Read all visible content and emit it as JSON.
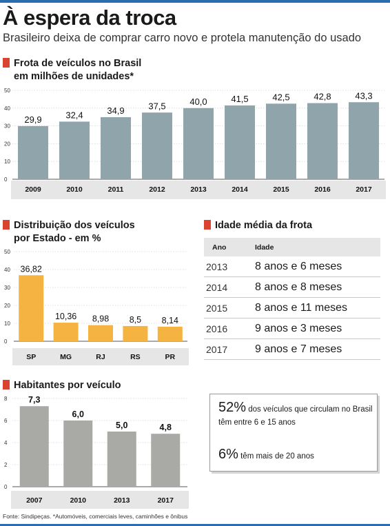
{
  "header": {
    "title": "À espera da troca",
    "subtitle": "Brasileiro deixa de comprar carro novo e protela manutenção do usado"
  },
  "fleet": {
    "title": "Frota de veículos no Brasil",
    "subtitle": "em milhões de unidades*"
  },
  "distribution": {
    "title": "Distribuição dos veículos",
    "subtitle": "por Estado - em %"
  },
  "inhabitants": {
    "title": "Habitantes por veículo"
  },
  "age": {
    "title": "Idade média da frota",
    "col_year": "Ano",
    "col_age": "Idade",
    "rows": [
      {
        "year": "2013",
        "age": "8 anos e 6 meses"
      },
      {
        "year": "2014",
        "age": "8 anos e 8 meses"
      },
      {
        "year": "2015",
        "age": "8 anos e 11 meses"
      },
      {
        "year": "2016",
        "age": "9 anos e 3 meses"
      },
      {
        "year": "2017",
        "age": "9 anos e 7 meses"
      }
    ]
  },
  "stats": {
    "pct1": "52%",
    "text1": "dos veículos que circulam no Brasil têm entre 6 e 15 anos",
    "pct2": "6%",
    "text2": "têm mais de 20 anos"
  },
  "footer": {
    "source": "Fonte: Sindipeças. *Automóveis, comerciais leves, caminhões e ônibus"
  },
  "colors": {
    "accent": "#d9432f",
    "fleet_bar": "#8fa4ab",
    "state_bar": "#f5b342",
    "inhabitants_bar": "#a9a9a6",
    "band": "#e6e6e6"
  },
  "chart_data": [
    {
      "type": "bar",
      "title": "Frota de veículos no Brasil",
      "ylabel": "em milhões de unidades*",
      "categories": [
        "2009",
        "2010",
        "2011",
        "2012",
        "2013",
        "2014",
        "2015",
        "2016",
        "2017"
      ],
      "values": [
        29.9,
        32.4,
        34.9,
        37.5,
        40.0,
        41.5,
        42.5,
        42.8,
        43.3
      ],
      "value_labels": [
        "29,9",
        "32,4",
        "34,9",
        "37,5",
        "40,0",
        "41,5",
        "42,5",
        "42,8",
        "43,3"
      ],
      "yticks": [
        0,
        10,
        20,
        30,
        40,
        50
      ],
      "ylim": [
        0,
        50
      ]
    },
    {
      "type": "bar",
      "title": "Distribuição dos veículos",
      "ylabel": "por Estado - em %",
      "categories": [
        "SP",
        "MG",
        "RJ",
        "RS",
        "PR"
      ],
      "values": [
        36.82,
        10.36,
        8.98,
        8.5,
        8.14
      ],
      "value_labels": [
        "36,82",
        "10,36",
        "8,98",
        "8,5",
        "8,14"
      ],
      "yticks": [
        0,
        10,
        20,
        30,
        40,
        50
      ],
      "ylim": [
        0,
        50
      ]
    },
    {
      "type": "bar",
      "title": "Habitantes por veículo",
      "categories": [
        "2007",
        "2010",
        "2013",
        "2017"
      ],
      "values": [
        7.3,
        6.0,
        5.0,
        4.8
      ],
      "value_labels": [
        "7,3",
        "6,0",
        "5,0",
        "4,8"
      ],
      "yticks": [
        0,
        2,
        4,
        6,
        8
      ],
      "ylim": [
        0,
        8
      ]
    }
  ]
}
